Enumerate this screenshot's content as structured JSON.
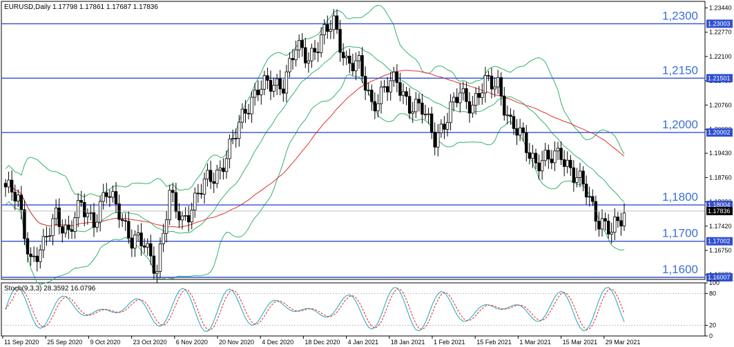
{
  "chart_data": [
    {
      "type": "candlestick",
      "title": "EURUSD,Daily  1.17798 1.17861 1.17687 1.17836",
      "yaxis_ticks": [
        "1.23440",
        "1.22770",
        "1.22100",
        "1.21430",
        "1.20760",
        "1.20090",
        "1.19430",
        "1.18760",
        "1.18090",
        "1.17420",
        "1.16750",
        "1.16080"
      ],
      "ylim": [
        1.1595,
        1.2362
      ],
      "x_tick_labels": [
        "11 Sep 2020",
        "25 Sep 2020",
        "9 Oct 2020",
        "23 Oct 2020",
        "6 Nov 2020",
        "20 Nov 2020",
        "4 Dec 2020",
        "18 Dec 2020",
        "4 Jan 2021",
        "18 Jan 2021",
        "1 Feb 2021",
        "15 Feb 2021",
        "1 Mar 2021",
        "15 Mar 2021",
        "29 Mar 2021"
      ],
      "current_price": "1.17836",
      "horizontal_levels": [
        {
          "label": "1,2300",
          "price": 1.23003,
          "box": "1.23003"
        },
        {
          "label": "1,2150",
          "price": 1.21501,
          "box": "1.21501"
        },
        {
          "label": "1,2000",
          "price": 1.20002,
          "box": "1.20002"
        },
        {
          "label": "1,1800",
          "price": 1.18004,
          "box": "1.18004"
        },
        {
          "label": "1,1700",
          "price": 1.17002,
          "box": "1.17002"
        },
        {
          "label": "1,1600",
          "price": 1.16007,
          "box": "1.16007"
        }
      ],
      "key_points": [
        [
          0,
          1.185
        ],
        [
          4,
          1.181
        ],
        [
          8,
          1.165
        ],
        [
          12,
          1.168
        ],
        [
          16,
          1.178
        ],
        [
          20,
          1.172
        ],
        [
          24,
          1.18
        ],
        [
          28,
          1.176
        ],
        [
          32,
          1.183
        ],
        [
          36,
          1.179
        ],
        [
          40,
          1.17
        ],
        [
          44,
          1.169
        ],
        [
          48,
          1.163
        ],
        [
          52,
          1.182
        ],
        [
          56,
          1.176
        ],
        [
          60,
          1.181
        ],
        [
          64,
          1.187
        ],
        [
          68,
          1.19
        ],
        [
          72,
          1.197
        ],
        [
          76,
          1.207
        ],
        [
          80,
          1.212
        ],
        [
          84,
          1.213
        ],
        [
          88,
          1.214
        ],
        [
          92,
          1.223
        ],
        [
          96,
          1.221
        ],
        [
          100,
          1.226
        ],
        [
          104,
          1.23
        ],
        [
          108,
          1.22
        ],
        [
          112,
          1.218
        ],
        [
          116,
          1.208
        ],
        [
          120,
          1.212
        ],
        [
          124,
          1.214
        ],
        [
          128,
          1.208
        ],
        [
          132,
          1.206
        ],
        [
          136,
          1.199
        ],
        [
          140,
          1.204
        ],
        [
          144,
          1.211
        ],
        [
          148,
          1.208
        ],
        [
          152,
          1.213
        ],
        [
          156,
          1.214
        ],
        [
          160,
          1.202
        ],
        [
          164,
          1.198
        ],
        [
          168,
          1.192
        ],
        [
          172,
          1.192
        ],
        [
          176,
          1.195
        ],
        [
          180,
          1.188
        ],
        [
          184,
          1.184
        ],
        [
          188,
          1.176
        ],
        [
          192,
          1.172
        ],
        [
          196,
          1.1784
        ]
      ],
      "indicators": [
        {
          "name": "Bollinger Bands",
          "color": "#33b06a"
        },
        {
          "name": "Moving Average",
          "color": "#e03030"
        }
      ],
      "grid": false
    },
    {
      "type": "line",
      "title": "Stoch(9,3,3) 28.3592 16.0796",
      "yaxis_ticks": [
        "100",
        "80",
        "20",
        "0"
      ],
      "ylim": [
        0,
        100
      ],
      "series": [
        {
          "name": "Stoch main",
          "color": "#1fa3b8"
        },
        {
          "name": "Stoch signal",
          "color": "#e02020"
        }
      ]
    }
  ]
}
